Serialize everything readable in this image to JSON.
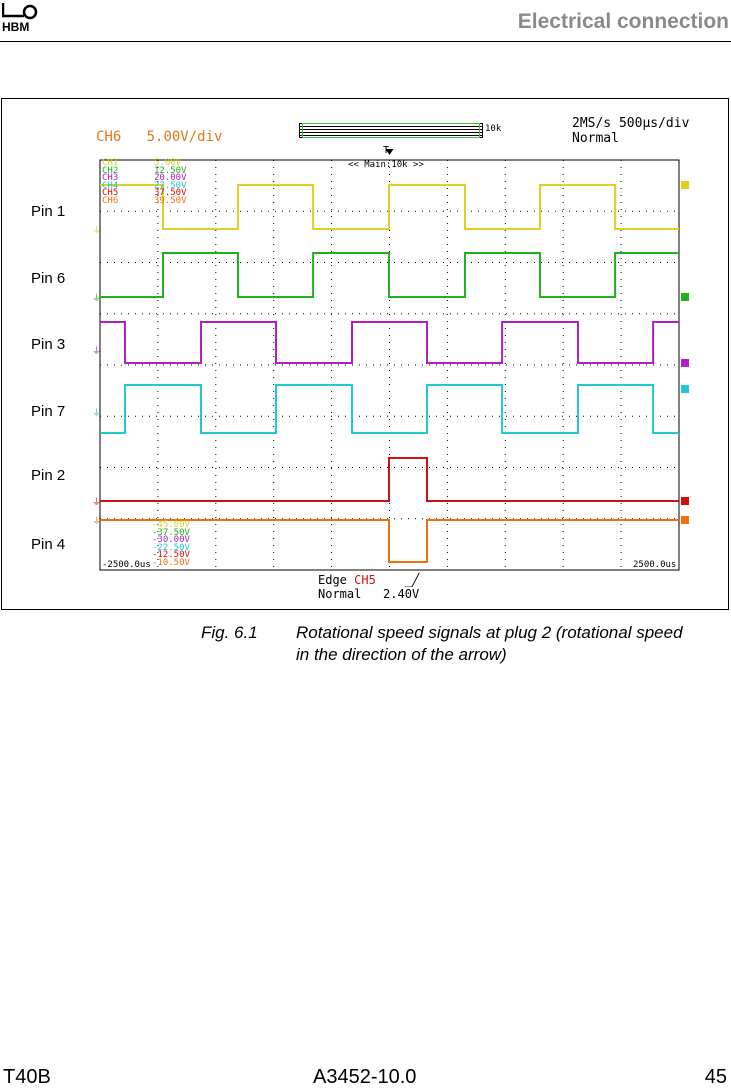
{
  "header": {
    "logo_text": "HBM",
    "title": "Electrical connection"
  },
  "figure": {
    "pin_labels": [
      "Pin 1",
      "Pin 6",
      "Pin 3",
      "Pin 7",
      "Pin 2",
      "Pin 4"
    ],
    "scope": {
      "scale_channel": "CH6",
      "scale": "5.00V/div",
      "record_length": "10k",
      "sample_rate": "2MS/s",
      "timebase": "500µs/div",
      "mode": "Normal",
      "trigger_marker": "T",
      "zoom_label": "<< Main:10k >>",
      "channels": [
        {
          "name": "CH1",
          "top": "5.00V",
          "bottom": "-45.00V",
          "color": "#e0d020"
        },
        {
          "name": "CH2",
          "top": "12.50V",
          "bottom": "-37.50V",
          "color": "#20b020"
        },
        {
          "name": "CH3",
          "top": "20.00V",
          "bottom": "-30.00V",
          "color": "#b020c0"
        },
        {
          "name": "CH4",
          "top": "27.50V",
          "bottom": "-22.50V",
          "color": "#20c8d0"
        },
        {
          "name": "CH5",
          "top": "37.50V",
          "bottom": "-12.50V",
          "color": "#d01010"
        },
        {
          "name": "CH6",
          "top": "39.50V",
          "bottom": "-10.50V",
          "color": "#f07010"
        }
      ],
      "time_left": "-2500.0us",
      "time_right": "2500.0us",
      "trigger_type": "Edge",
      "trigger_source": "CH5",
      "trigger_mode": "Normal",
      "trigger_level": "2.40V"
    }
  },
  "chart_data": {
    "type": "line",
    "xlabel": "",
    "ylabel": "",
    "xlim_us": [
      -2500,
      2500
    ],
    "series": [
      {
        "channel": "CH1",
        "initial": "high",
        "edges_us": [
          -1956,
          -1308,
          -660,
          -4,
          652,
          1300,
          1948
        ]
      },
      {
        "channel": "CH2",
        "initial": "low",
        "edges_us": [
          -1956,
          -1308,
          -660,
          -4,
          652,
          1300,
          1948
        ]
      },
      {
        "channel": "CH3",
        "initial": "high",
        "edges_us": [
          -2284,
          -1628,
          -980,
          -324,
          324,
          972,
          1628,
          2276
        ]
      },
      {
        "channel": "CH4",
        "initial": "low",
        "edges_us": [
          -2284,
          -1628,
          -980,
          -324,
          324,
          972,
          1628,
          2276
        ]
      },
      {
        "channel": "CH5",
        "initial": "low",
        "edges_us": [
          -4,
          324
        ]
      },
      {
        "channel": "CH6",
        "initial": "high",
        "edges_us": [
          -4,
          324
        ]
      }
    ]
  },
  "caption": {
    "number": "Fig. 6.1",
    "text_line1": "Rotational speed signals at plug 2 (rotational speed",
    "text_line2": "in the direction of the arrow)"
  },
  "footer": {
    "left": "T40B",
    "center": "A3452-10.0",
    "right": "45"
  }
}
